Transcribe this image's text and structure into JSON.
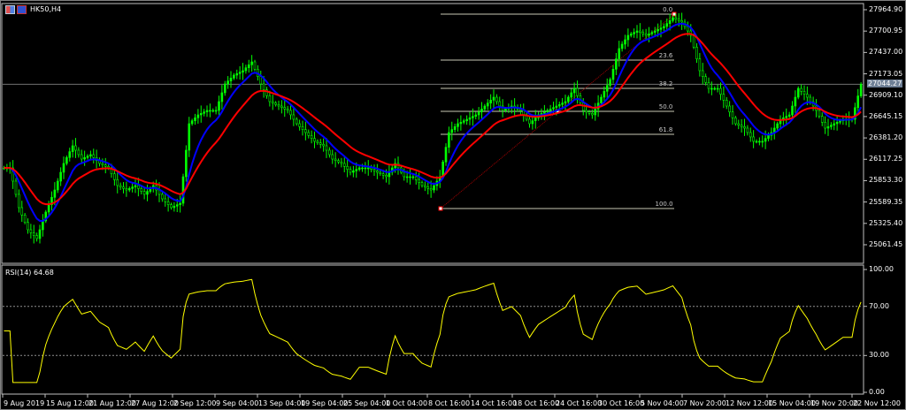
{
  "window": {
    "title": "HK50,H4"
  },
  "colors": {
    "bull": "#00ff00",
    "bear": "#22c022",
    "ma_fast": "#0000ff",
    "ma_slow": "#ff0000",
    "rsi": "#ffff00",
    "fib": "#c8c8b4",
    "background": "#000000"
  },
  "icons": [
    "chart-window-icon",
    "expert-icon"
  ],
  "price_axis": {
    "labels": [
      "27964.90",
      "27700.95",
      "27437.00",
      "27173.05",
      "26909.10",
      "26645.15",
      "26381.20",
      "26117.25",
      "25853.30",
      "25589.35",
      "25325.40",
      "25061.45"
    ],
    "current_price": "27044.27"
  },
  "rsi": {
    "label": "RSI(14) 64.68",
    "axis_labels": [
      "100.00",
      "70.00",
      "30.00",
      "0.00"
    ],
    "levels": [
      70,
      30
    ]
  },
  "fibonacci": {
    "levels": [
      "0.0",
      "23.6",
      "38.2",
      "50.0",
      "61.8",
      "100.0"
    ],
    "high": 27910,
    "low": 25509
  },
  "time_axis": {
    "labels": [
      "9 Aug 2019",
      "15 Aug 12:00",
      "21 Aug 12:00",
      "27 Aug 12:00",
      "2 Sep 12:00",
      "9 Sep 04:00",
      "13 Sep 04:00",
      "19 Sep 04:00",
      "25 Sep 04:00",
      "1 Oct 04:00",
      "8 Oct 16:00",
      "14 Oct 16:00",
      "18 Oct 16:00",
      "24 Oct 16:00",
      "30 Oct 16:00",
      "5 Nov 04:00",
      "7 Nov 20:00",
      "12 Nov 12:00",
      "15 Nov 04:00",
      "19 Nov 20:00",
      "22 Nov 12:00"
    ]
  },
  "chart_data": {
    "type": "candlestick",
    "symbol": "HK50",
    "timeframe": "H4",
    "ylim": [
      24900,
      28050
    ],
    "close": [
      26011,
      25520,
      25247,
      25138,
      25465,
      25738,
      26066,
      26284,
      26120,
      26175,
      26066,
      26011,
      25793,
      25738,
      25793,
      25684,
      25793,
      25629,
      25520,
      25574,
      26557,
      26666,
      26721,
      26721,
      27048,
      27157,
      27212,
      27321,
      27048,
      26830,
      26775,
      26721,
      26557,
      26448,
      26339,
      26284,
      26120,
      26066,
      25956,
      26011,
      26011,
      25956,
      25902,
      26066,
      25902,
      25902,
      25793,
      25738,
      25902,
      26448,
      26557,
      26611,
      26666,
      26775,
      26884,
      26721,
      26775,
      26721,
      26557,
      26666,
      26721,
      26775,
      26830,
      26993,
      26721,
      26666,
      26884,
      27103,
      27485,
      27648,
      27703,
      27648,
      27703,
      27758,
      27867,
      27812,
      27648,
      27212,
      26993,
      26993,
      26775,
      26557,
      26502,
      26339,
      26339,
      26448,
      26611,
      26666,
      26993,
      26884,
      26721,
      26502,
      26557,
      26611,
      26611,
      27044
    ]
  }
}
